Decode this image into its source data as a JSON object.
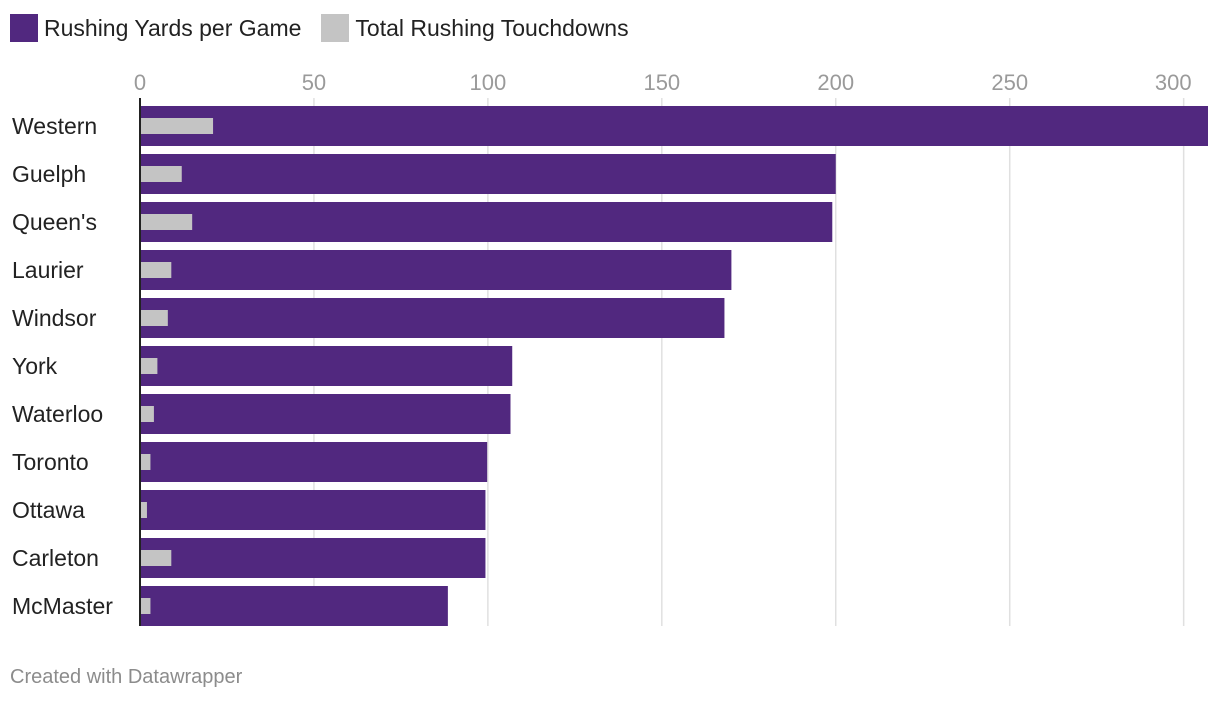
{
  "legend": {
    "items": [
      {
        "label": "Rushing Yards per Game",
        "color": "#51287f"
      },
      {
        "label": "Total Rushing Touchdowns",
        "color": "#c4c4c4"
      }
    ]
  },
  "footer": {
    "text": "Created with Datawrapper"
  },
  "chart_data": {
    "type": "bar",
    "orientation": "horizontal",
    "title": "",
    "xlabel": "",
    "ylabel": "",
    "xlim": [
      0,
      307
    ],
    "ticks": [
      0,
      50,
      100,
      150,
      200,
      250,
      300
    ],
    "grid": true,
    "legend_position": "top-left",
    "categories": [
      "Western",
      "Guelph",
      "Queen's",
      "Laurier",
      "Windsor",
      "York",
      "Waterloo",
      "Toronto",
      "Ottawa",
      "Carleton",
      "McMaster"
    ],
    "series": [
      {
        "name": "Rushing Yards per Game",
        "color": "#51287f",
        "values": [
          307,
          200,
          199,
          170,
          168,
          107,
          106.5,
          99.8,
          99.3,
          99.3,
          88.5
        ]
      },
      {
        "name": "Total Rushing Touchdowns",
        "color": "#c4c4c4",
        "values": [
          21,
          12,
          15,
          9,
          8,
          5,
          4,
          3,
          2,
          9,
          3
        ]
      }
    ]
  }
}
